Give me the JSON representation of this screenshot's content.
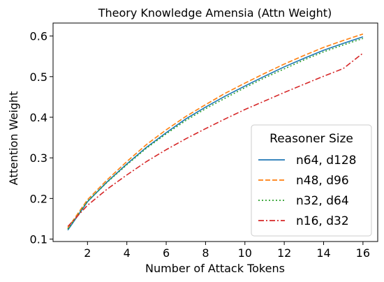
{
  "chart_data": {
    "type": "line",
    "title": "Theory Knowledge Amensia (Attn Weight)",
    "xlabel": "Number of Attack Tokens",
    "ylabel": "Attention Weight",
    "xlim": [
      0.25,
      16.75
    ],
    "ylim": [
      0.094,
      0.632
    ],
    "xticks": [
      2,
      4,
      6,
      8,
      10,
      12,
      14,
      16
    ],
    "yticks": [
      0.1,
      0.2,
      0.3,
      0.4,
      0.5,
      0.6
    ],
    "grid": false,
    "legend": {
      "title": "Reasoner Size",
      "placement": "lower right"
    },
    "x": [
      1,
      2,
      3,
      4,
      5,
      6,
      7,
      8,
      9,
      10,
      11,
      12,
      13,
      14,
      15,
      16
    ],
    "series": [
      {
        "name": "n64, d128",
        "color": "#1f77b4",
        "dash": "solid",
        "values": [
          0.122,
          0.192,
          0.241,
          0.285,
          0.326,
          0.362,
          0.396,
          0.425,
          0.452,
          0.477,
          0.501,
          0.524,
          0.545,
          0.565,
          0.582,
          0.598
        ]
      },
      {
        "name": "n48, d96",
        "color": "#ff7f0e",
        "dash": "dashed",
        "values": [
          0.127,
          0.197,
          0.246,
          0.291,
          0.333,
          0.369,
          0.402,
          0.431,
          0.459,
          0.484,
          0.508,
          0.531,
          0.552,
          0.572,
          0.589,
          0.605
        ]
      },
      {
        "name": "n32, d64",
        "color": "#2ca02c",
        "dash": "dotted",
        "values": [
          0.125,
          0.193,
          0.24,
          0.283,
          0.324,
          0.359,
          0.392,
          0.421,
          0.447,
          0.473,
          0.497,
          0.519,
          0.541,
          0.561,
          0.578,
          0.594
        ]
      },
      {
        "name": "n16, d32",
        "color": "#d62728",
        "dash": "dashdot",
        "values": [
          0.131,
          0.183,
          0.223,
          0.258,
          0.291,
          0.32,
          0.347,
          0.372,
          0.396,
          0.419,
          0.44,
          0.461,
          0.481,
          0.501,
          0.52,
          0.558
        ]
      }
    ]
  }
}
